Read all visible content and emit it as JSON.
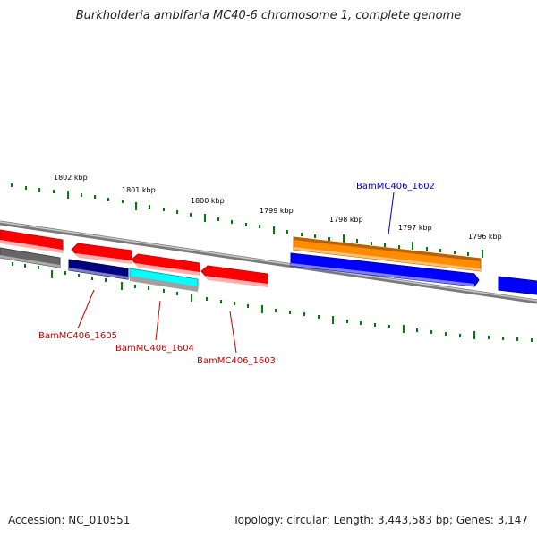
{
  "title": "Burkholderia ambifaria MC40-6 chromosome 1, complete genome",
  "footer": {
    "accession": "Accession: NC_010551",
    "summary": "Topology: circular; Length: 3,443,583 bp; Genes: 3,147"
  },
  "ticks": [
    "1802 kbp",
    "1801 kbp",
    "1800 kbp",
    "1799 kbp",
    "1798 kbp",
    "1797 kbp",
    "1796 kbp"
  ],
  "gene_labels": {
    "g1602": "BamMC406_1602",
    "g1603": "BamMC406_1603",
    "g1604": "BamMC406_1604",
    "g1605": "BamMC406_1605"
  },
  "colors": {
    "cds": "#ff0000",
    "gene": "#ff8c00",
    "rrna": "#0000ff",
    "navy": "#000080",
    "cyan": "#00ffff",
    "grey": "#666666",
    "tick": "#008000",
    "backbone": "#888888",
    "label_red": "#cc0000",
    "label_blue": "#0000cc"
  }
}
